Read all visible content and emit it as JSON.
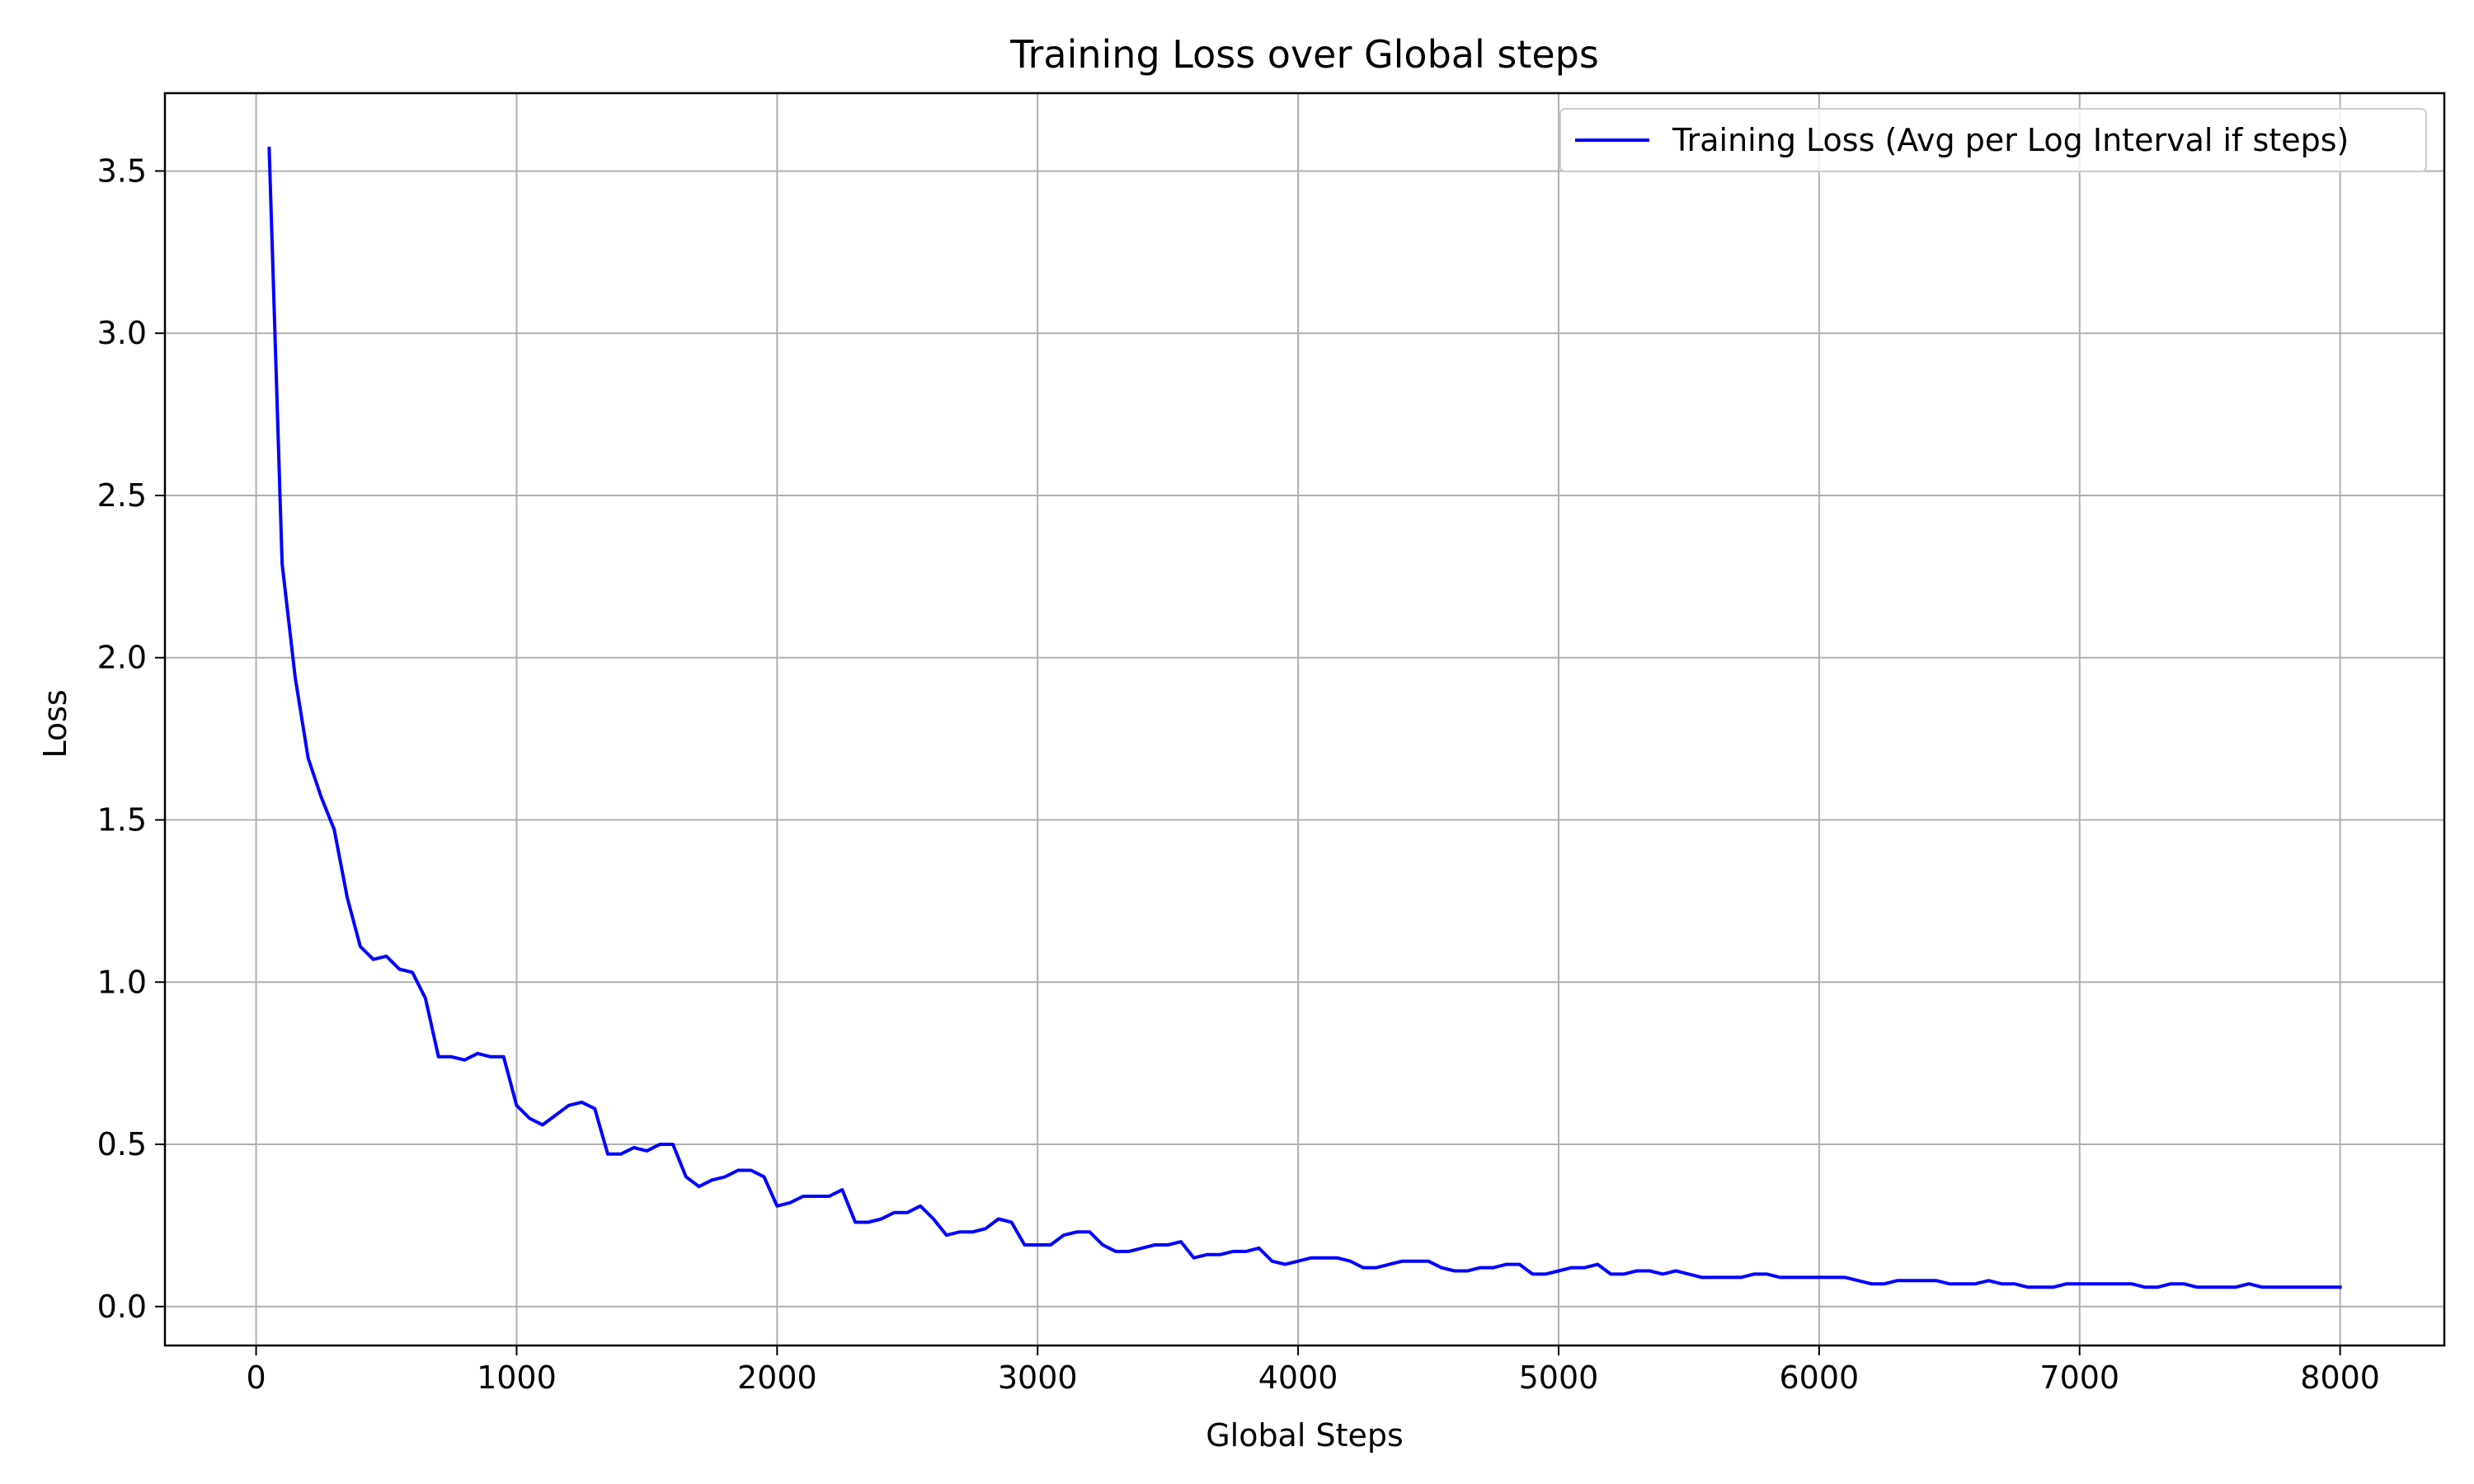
{
  "chart_data": {
    "type": "line",
    "title": "Training Loss over Global steps",
    "xlabel": "Global Steps",
    "ylabel": "Loss",
    "xlim": [
      -350,
      8400
    ],
    "ylim": [
      -0.12,
      3.74
    ],
    "xticks": [
      0,
      1000,
      2000,
      3000,
      4000,
      5000,
      6000,
      7000,
      8000
    ],
    "xtick_labels": [
      "0",
      "1000",
      "2000",
      "3000",
      "4000",
      "5000",
      "6000",
      "7000",
      "8000"
    ],
    "yticks": [
      0.0,
      0.5,
      1.0,
      1.5,
      2.0,
      2.5,
      3.0,
      3.5
    ],
    "ytick_labels": [
      "0.0",
      "0.5",
      "1.0",
      "1.5",
      "2.0",
      "2.5",
      "3.0",
      "3.5"
    ],
    "grid": true,
    "legend_position": "top-right",
    "series": [
      {
        "name": "Training Loss (Avg per Log Interval if steps)",
        "color": "#0000ff",
        "x": [
          50,
          100,
          150,
          200,
          250,
          300,
          350,
          400,
          450,
          500,
          550,
          600,
          650,
          700,
          750,
          800,
          850,
          900,
          950,
          1000,
          1050,
          1100,
          1150,
          1200,
          1250,
          1300,
          1350,
          1400,
          1450,
          1500,
          1550,
          1600,
          1650,
          1700,
          1750,
          1800,
          1850,
          1900,
          1950,
          2000,
          2050,
          2100,
          2150,
          2200,
          2250,
          2300,
          2350,
          2400,
          2450,
          2500,
          2550,
          2600,
          2650,
          2700,
          2750,
          2800,
          2850,
          2900,
          2950,
          3000,
          3050,
          3100,
          3150,
          3200,
          3250,
          3300,
          3350,
          3400,
          3450,
          3500,
          3550,
          3600,
          3650,
          3700,
          3750,
          3800,
          3850,
          3900,
          3950,
          4000,
          4050,
          4100,
          4150,
          4200,
          4250,
          4300,
          4350,
          4400,
          4450,
          4500,
          4550,
          4600,
          4650,
          4700,
          4750,
          4800,
          4850,
          4900,
          4950,
          5000,
          5050,
          5100,
          5150,
          5200,
          5250,
          5300,
          5350,
          5400,
          5450,
          5500,
          5550,
          5600,
          5650,
          5700,
          5750,
          5800,
          5850,
          5900,
          5950,
          6000,
          6050,
          6100,
          6150,
          6200,
          6250,
          6300,
          6350,
          6400,
          6450,
          6500,
          6550,
          6600,
          6650,
          6700,
          6750,
          6800,
          6850,
          6900,
          6950,
          7000,
          7050,
          7100,
          7150,
          7200,
          7250,
          7300,
          7350,
          7400,
          7450,
          7500,
          7550,
          7600,
          7650,
          7700,
          7750,
          7800,
          7850,
          7900,
          7950,
          8000
        ],
        "y": [
          3.57,
          2.29,
          1.94,
          1.69,
          1.57,
          1.47,
          1.26,
          1.11,
          1.07,
          1.08,
          1.04,
          1.03,
          0.95,
          0.77,
          0.77,
          0.76,
          0.78,
          0.77,
          0.77,
          0.62,
          0.58,
          0.56,
          0.59,
          0.62,
          0.63,
          0.61,
          0.47,
          0.47,
          0.49,
          0.48,
          0.5,
          0.5,
          0.4,
          0.37,
          0.39,
          0.4,
          0.42,
          0.42,
          0.4,
          0.31,
          0.32,
          0.34,
          0.34,
          0.34,
          0.36,
          0.26,
          0.26,
          0.27,
          0.29,
          0.29,
          0.31,
          0.27,
          0.22,
          0.23,
          0.23,
          0.24,
          0.27,
          0.26,
          0.19,
          0.19,
          0.19,
          0.22,
          0.23,
          0.23,
          0.19,
          0.17,
          0.17,
          0.18,
          0.19,
          0.19,
          0.2,
          0.15,
          0.16,
          0.16,
          0.17,
          0.17,
          0.18,
          0.14,
          0.13,
          0.14,
          0.15,
          0.15,
          0.15,
          0.14,
          0.12,
          0.12,
          0.13,
          0.14,
          0.14,
          0.14,
          0.12,
          0.11,
          0.11,
          0.12,
          0.12,
          0.13,
          0.13,
          0.1,
          0.1,
          0.11,
          0.12,
          0.12,
          0.13,
          0.1,
          0.1,
          0.11,
          0.11,
          0.1,
          0.11,
          0.1,
          0.09,
          0.09,
          0.09,
          0.09,
          0.1,
          0.1,
          0.09,
          0.09,
          0.09,
          0.09,
          0.09,
          0.09,
          0.08,
          0.07,
          0.07,
          0.08,
          0.08,
          0.08,
          0.08,
          0.07,
          0.07,
          0.07,
          0.08,
          0.07,
          0.07,
          0.06,
          0.06,
          0.06,
          0.07,
          0.07,
          0.07,
          0.07,
          0.07,
          0.07,
          0.06,
          0.06,
          0.07,
          0.07,
          0.06,
          0.06,
          0.06,
          0.06,
          0.07,
          0.06,
          0.06,
          0.06,
          0.06,
          0.06,
          0.06,
          0.06
        ]
      }
    ]
  }
}
